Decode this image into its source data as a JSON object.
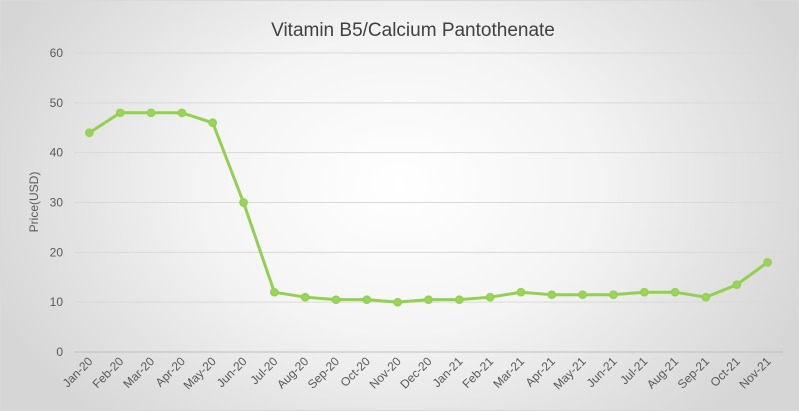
{
  "chart_data": {
    "type": "line",
    "title": "Vitamin B5/Calcium Pantothenate",
    "xlabel": "",
    "ylabel": "Price(USD)",
    "ylim": [
      0,
      60
    ],
    "yticks": [
      0,
      10,
      20,
      30,
      40,
      50,
      60
    ],
    "grid": true,
    "categories": [
      "Jan-20",
      "Feb-20",
      "Mar-20",
      "Apr-20",
      "May-20",
      "Jun-20",
      "Jul-20",
      "Aug-20",
      "Sep-20",
      "Oct-20",
      "Nov-20",
      "Dec-20",
      "Jan-21",
      "Feb-21",
      "Mar-21",
      "Apr-21",
      "May-21",
      "Jun-21",
      "Jul-21",
      "Aug-21",
      "Sep-21",
      "Oct-21",
      "Nov-21"
    ],
    "series": [
      {
        "name": "Vitamin B5/Calcium Pantothenate",
        "color": "#92d050",
        "values": [
          44,
          48,
          48,
          48,
          46,
          30,
          12,
          11,
          10.5,
          10.5,
          10,
          10.5,
          10.5,
          11,
          12,
          11.5,
          11.5,
          11.5,
          12,
          12,
          11,
          13.5,
          18
        ]
      }
    ]
  }
}
